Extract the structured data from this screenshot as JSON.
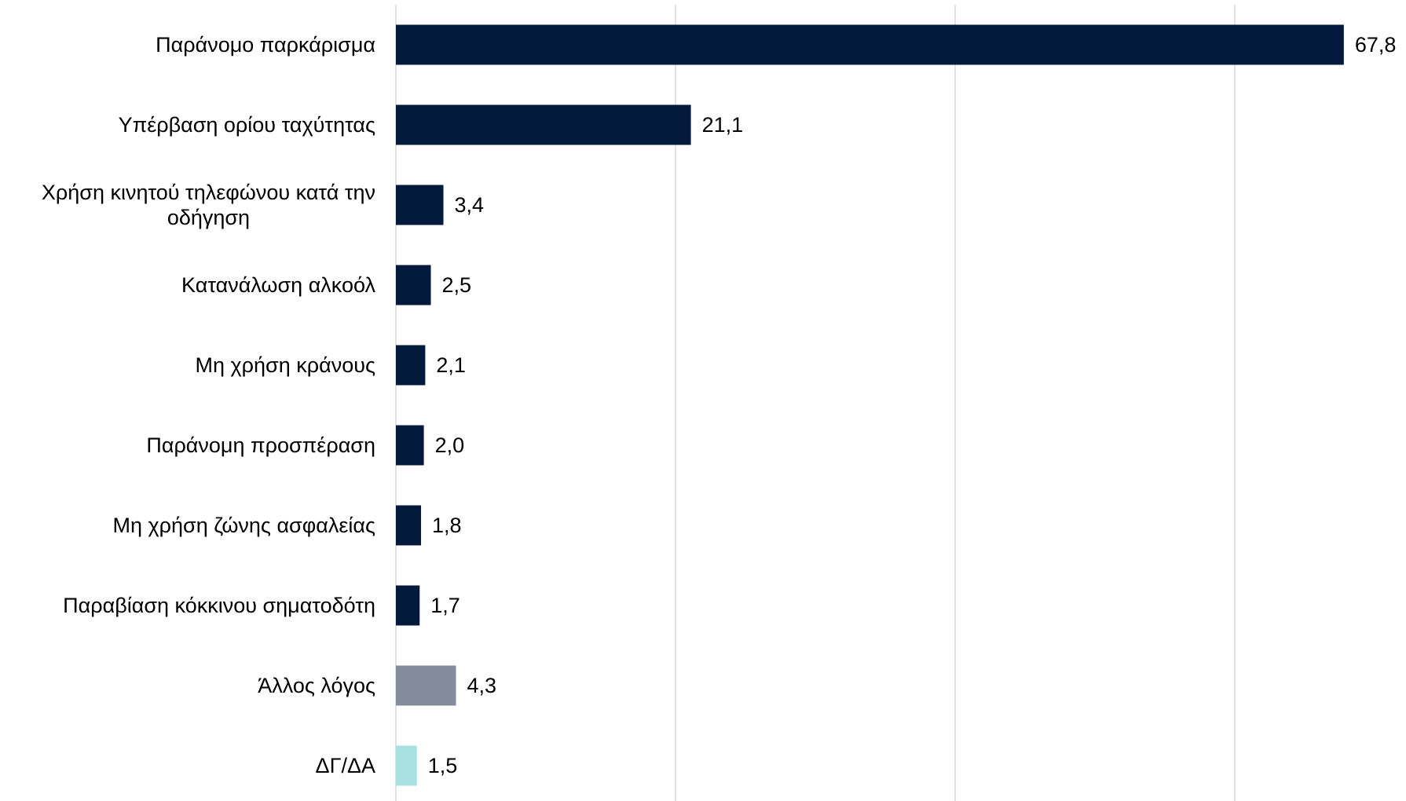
{
  "colors": {
    "primary": "#041a3d",
    "other": "#848c9c",
    "no_answer": "#a8e0e0",
    "grid": "#d9d9d9"
  },
  "chart_data": {
    "type": "bar",
    "orientation": "horizontal",
    "title": "",
    "xlabel": "",
    "ylabel": "",
    "xlim": [
      0,
      70
    ],
    "gridlines_x": [
      0,
      20,
      40,
      60
    ],
    "tick_labels_shown": false,
    "legend": "none",
    "categories": [
      "Παράνομο παρκάρισμα",
      "Υπέρβαση ορίου ταχύτητας",
      "Χρήση κινητού τηλεφώνου κατά την οδήγηση",
      "Κατανάλωση αλκοόλ",
      "Μη χρήση κράνους",
      "Παράνομη προσπέραση",
      "Μη χρήση ζώνης ασφαλείας",
      "Παραβίαση κόκκινου σηματοδότη",
      "Άλλος λόγος",
      "ΔΓ/ΔΑ"
    ],
    "category_label_lines": [
      [
        "Παράνομο παρκάρισμα"
      ],
      [
        "Υπέρβαση ορίου ταχύτητας"
      ],
      [
        "Χρήση κινητού τηλεφώνου κατά την",
        "οδήγηση"
      ],
      [
        "Κατανάλωση αλκοόλ"
      ],
      [
        "Μη χρήση κράνους"
      ],
      [
        "Παράνομη προσπέραση"
      ],
      [
        "Μη χρήση ζώνης ασφαλείας"
      ],
      [
        "Παραβίαση κόκκινου σηματοδότη"
      ],
      [
        "Άλλος λόγος"
      ],
      [
        "ΔΓ/ΔΑ"
      ]
    ],
    "values": [
      67.8,
      21.1,
      3.4,
      2.5,
      2.1,
      2.0,
      1.8,
      1.7,
      4.3,
      1.5
    ],
    "value_labels": [
      "67,8",
      "21,1",
      "3,4",
      "2,5",
      "2,1",
      "2,0",
      "1,8",
      "1,7",
      "4,3",
      "1,5"
    ],
    "bar_color_keys": [
      "primary",
      "primary",
      "primary",
      "primary",
      "primary",
      "primary",
      "primary",
      "primary",
      "other",
      "no_answer"
    ]
  }
}
